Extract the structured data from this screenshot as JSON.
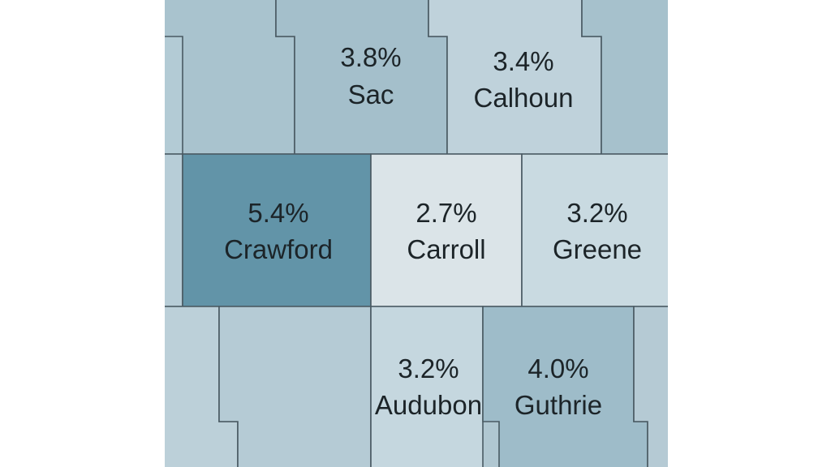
{
  "counties": {
    "sac": {
      "name": "Sac",
      "rate": "3.8%",
      "color": "#a4bfcb"
    },
    "calhoun": {
      "name": "Calhoun",
      "rate": "3.4%",
      "color": "#bfd2db"
    },
    "crawford": {
      "name": "Crawford",
      "rate": "5.4%",
      "color": "#6294a8"
    },
    "carroll": {
      "name": "Carroll",
      "rate": "2.7%",
      "color": "#dbe4e8"
    },
    "greene": {
      "name": "Greene",
      "rate": "3.2%",
      "color": "#c9dae1"
    },
    "audubon": {
      "name": "Audubon",
      "rate": "3.2%",
      "color": "#c5d7df"
    },
    "guthrie": {
      "name": "Guthrie",
      "rate": "4.0%",
      "color": "#9ebcc9"
    }
  },
  "unlabeled_colors": {
    "northwest": "#a9c3ce",
    "north_west_edge": "#b3cbd5",
    "north_east": "#a6c1cc",
    "west_middle": "#b7cdd7",
    "south_west_edge": "#bcd0d9",
    "harrison_area": "#b5cbd5",
    "cass_area": "#b3c9d3",
    "east_middle_edge": "#b8ccd6",
    "south_east": "#b5cad4"
  }
}
